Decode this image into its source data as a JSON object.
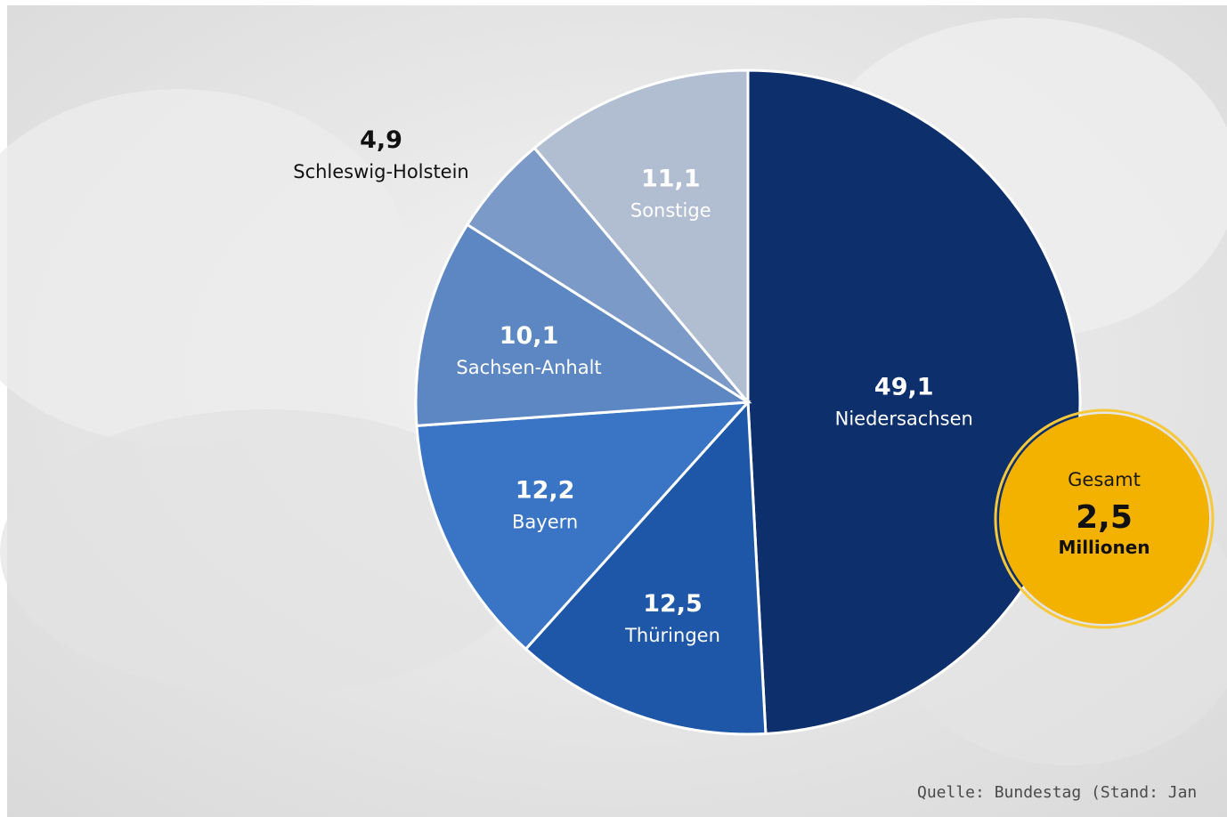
{
  "chart_data": {
    "type": "pie",
    "title": "",
    "unit": "",
    "slices": [
      {
        "label": "Niedersachsen",
        "value": 49.1,
        "display": "49,1",
        "color": "#0d2f6b",
        "text_color": "#ffffff"
      },
      {
        "label": "Thüringen",
        "value": 12.5,
        "display": "12,5",
        "color": "#1f57a8",
        "text_color": "#ffffff"
      },
      {
        "label": "Bayern",
        "value": 12.2,
        "display": "12,2",
        "color": "#3a74c4",
        "text_color": "#ffffff"
      },
      {
        "label": "Sachsen-Anhalt",
        "value": 10.1,
        "display": "10,1",
        "color": "#5c87c2",
        "text_color": "#ffffff"
      },
      {
        "label": "Schleswig-Holstein",
        "value": 4.9,
        "display": "4,9",
        "color": "#7b9ac7",
        "text_color": "#111111",
        "label_outside": true
      },
      {
        "label": "Sonstige",
        "value": 11.1,
        "display": "11,1",
        "color": "#b1bed2",
        "text_color": "#ffffff"
      }
    ],
    "start_angle_deg": 0,
    "direction": "clockwise",
    "legend": "none"
  },
  "total_badge": {
    "label": "Gesamt",
    "value": "2,5",
    "unit": "Millionen",
    "color": "#f3b100",
    "border_color": "#f7c93a"
  },
  "source_note": "Quelle: Bundestag (Stand: Jan"
}
